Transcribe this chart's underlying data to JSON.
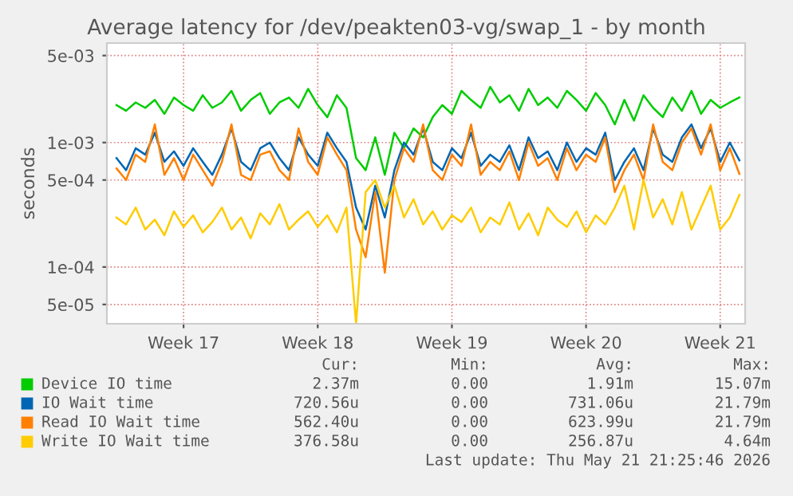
{
  "chart_data": {
    "type": "line",
    "title": "Average latency for /dev/peakten03-vg/swap_1 - by month",
    "ylabel": "seconds",
    "log": "y",
    "grid": true,
    "legend": "bottom",
    "line_style": "solid",
    "marker": "none",
    "ylim": [
      3.5e-05,
      0.0063
    ],
    "yticks": [
      {
        "value": 0.005,
        "label": "5e-03"
      },
      {
        "value": 0.001,
        "label": "1e-03"
      },
      {
        "value": 0.0005,
        "label": "5e-04"
      },
      {
        "value": 0.0001,
        "label": "1e-04"
      },
      {
        "value": 5e-05,
        "label": "5e-05"
      }
    ],
    "categories": [
      null,
      null,
      null,
      null,
      null,
      null,
      null,
      "Week 17",
      null,
      null,
      null,
      null,
      null,
      null,
      null,
      null,
      null,
      null,
      null,
      null,
      null,
      "Week 18",
      null,
      null,
      null,
      null,
      null,
      null,
      null,
      null,
      null,
      null,
      null,
      null,
      null,
      "Week 19",
      null,
      null,
      null,
      null,
      null,
      null,
      null,
      null,
      null,
      null,
      null,
      null,
      null,
      "Week 20",
      null,
      null,
      null,
      null,
      null,
      null,
      null,
      null,
      null,
      null,
      null,
      null,
      null,
      "Week 21",
      null,
      null
    ],
    "series": [
      {
        "name": "Device IO time",
        "color": "#00cc00",
        "values": [
          0.002,
          0.0018,
          0.0021,
          0.0019,
          0.0022,
          0.0017,
          0.0023,
          0.002,
          0.0018,
          0.0024,
          0.0019,
          0.0021,
          0.0026,
          0.0018,
          0.0022,
          0.0025,
          0.0017,
          0.0021,
          0.0023,
          0.0019,
          0.0027,
          0.002,
          0.0016,
          0.0024,
          0.0019,
          0.00075,
          0.0006,
          0.0011,
          0.00055,
          0.0012,
          0.0009,
          0.0013,
          0.0011,
          0.0016,
          0.002,
          0.0017,
          0.0026,
          0.0022,
          0.0019,
          0.0028,
          0.0021,
          0.0024,
          0.0018,
          0.0027,
          0.002,
          0.0023,
          0.0019,
          0.0026,
          0.0022,
          0.0018,
          0.0025,
          0.002,
          0.0014,
          0.0022,
          0.0015,
          0.0024,
          0.0019,
          0.0016,
          0.0023,
          0.0018,
          0.0026,
          0.0017,
          0.0022,
          0.0019,
          0.0021,
          0.0023
        ]
      },
      {
        "name": "IO Wait time",
        "color": "#0066b3",
        "values": [
          0.00075,
          0.0006,
          0.0009,
          0.0008,
          0.0012,
          0.0007,
          0.00085,
          0.00065,
          0.0009,
          0.0007,
          0.00055,
          0.0008,
          0.0013,
          0.0007,
          0.0006,
          0.0009,
          0.001,
          0.00075,
          0.0006,
          0.0011,
          0.0008,
          0.00065,
          0.0012,
          0.0009,
          0.0007,
          0.0003,
          0.0002,
          0.00045,
          0.00025,
          0.0006,
          0.001,
          0.0008,
          0.0013,
          0.0007,
          0.0006,
          0.0009,
          0.00075,
          0.0012,
          0.00065,
          0.0008,
          0.0007,
          0.00095,
          0.0006,
          0.0011,
          0.00075,
          0.00085,
          0.0006,
          0.001,
          0.0007,
          0.0009,
          0.0008,
          0.0012,
          0.0005,
          0.0007,
          0.0009,
          0.0006,
          0.0013,
          0.0008,
          0.0007,
          0.0011,
          0.0014,
          0.0009,
          0.0013,
          0.0007,
          0.001,
          0.00072
        ]
      },
      {
        "name": "Read IO Wait time",
        "color": "#ff8000",
        "values": [
          0.00062,
          0.0005,
          0.0008,
          0.0007,
          0.0014,
          0.00055,
          0.00075,
          0.0005,
          0.0008,
          0.0006,
          0.00045,
          0.0007,
          0.0014,
          0.00055,
          0.0005,
          0.0008,
          0.00085,
          0.0006,
          0.0005,
          0.0013,
          0.0007,
          0.00055,
          0.0011,
          0.0008,
          0.0006,
          0.0002,
          0.00012,
          0.0004,
          9e-05,
          0.0005,
          0.0009,
          0.0007,
          0.0014,
          0.0006,
          0.0005,
          0.0008,
          0.00065,
          0.0014,
          0.00055,
          0.0007,
          0.0006,
          0.00085,
          0.0005,
          0.001,
          0.00065,
          0.00075,
          0.0005,
          0.0009,
          0.0006,
          0.0008,
          0.0007,
          0.0011,
          0.0004,
          0.0006,
          0.0008,
          0.0005,
          0.0014,
          0.0007,
          0.0006,
          0.001,
          0.0013,
          0.0008,
          0.0014,
          0.0006,
          0.0009,
          0.00056
        ]
      },
      {
        "name": "Write IO Wait time",
        "color": "#ffcc00",
        "values": [
          0.00025,
          0.00022,
          0.0003,
          0.0002,
          0.00024,
          0.00018,
          0.00028,
          0.00021,
          0.00026,
          0.00019,
          0.00023,
          0.0003,
          0.0002,
          0.00025,
          0.00017,
          0.00027,
          0.00022,
          0.00032,
          0.0002,
          0.00024,
          0.00028,
          0.00021,
          0.00026,
          0.00019,
          0.0003,
          3.5e-05,
          0.0004,
          0.0005,
          0.0003,
          0.00045,
          0.00025,
          0.00035,
          0.00022,
          0.00028,
          0.0002,
          0.00026,
          0.00023,
          0.0003,
          0.00019,
          0.00025,
          0.00022,
          0.00033,
          0.0002,
          0.00027,
          0.00018,
          0.0003,
          0.00024,
          0.00021,
          0.00028,
          0.00019,
          0.00026,
          0.00022,
          0.0003,
          0.00045,
          0.0002,
          0.0005,
          0.00025,
          0.00035,
          0.00022,
          0.0004,
          0.0002,
          0.0003,
          0.00045,
          0.0002,
          0.00025,
          0.00038
        ]
      }
    ],
    "annotations": [
      "Cur:",
      "Min:",
      "Avg:",
      "Max:",
      "2.37m",
      "0.00",
      "1.91m",
      "15.07m",
      "720.56u",
      "0.00",
      "731.06u",
      "21.79m",
      "562.40u",
      "0.00",
      "623.99u",
      "21.79m",
      "376.58u",
      "0.00",
      "256.87u",
      "4.64m",
      "Last update: Thu May 21 21:25:46 2026"
    ]
  }
}
